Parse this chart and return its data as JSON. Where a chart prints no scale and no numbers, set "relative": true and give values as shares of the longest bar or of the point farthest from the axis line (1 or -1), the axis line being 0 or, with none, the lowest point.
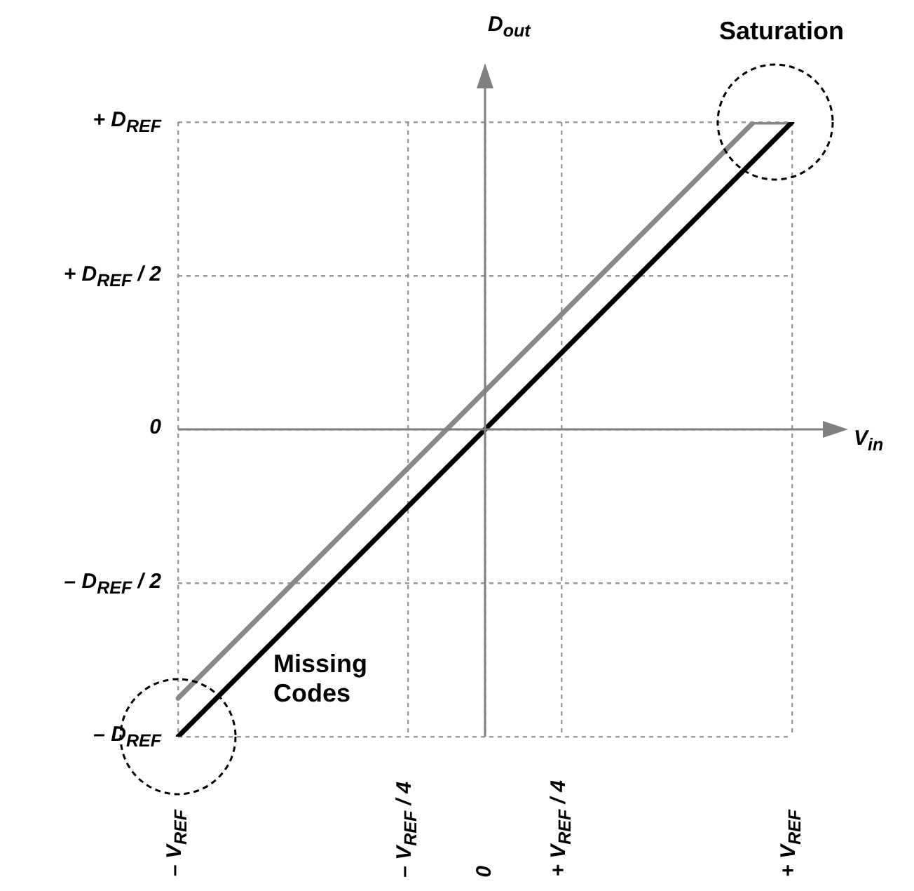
{
  "chart_data": {
    "type": "line",
    "relative": true,
    "xlabel": "V$_{in}$",
    "ylabel": "D$_{out}$",
    "grid": true,
    "legend": false,
    "marker": "none",
    "line_style": "solid",
    "categories": [
      "– V$_{REF}$",
      null,
      null,
      null,
      null,
      null,
      "– V$_{REF}$ / 4",
      null,
      "0",
      null,
      "+ V$_{REF}$ / 4",
      null,
      null,
      null,
      null,
      null,
      "+ V$_{REF}$"
    ],
    "annotations": [
      "Saturation",
      "Missing Codes",
      "+ D$_{REF}$",
      "+ D$_{REF}$ / 2",
      "0",
      "– D$_{REF}$ / 2",
      "– D$_{REF}$"
    ],
    "series": [
      {
        "color": "#888888",
        "values": [
          -0.875,
          -0.75,
          -0.625,
          -0.5,
          -0.375,
          -0.25,
          -0.125,
          0,
          0.125,
          0.25,
          0.375,
          0.5,
          0.625,
          0.75,
          0.875,
          1,
          1
        ]
      },
      {
        "color": "#000000",
        "values": [
          -1,
          -0.875,
          -0.75,
          -0.625,
          -0.5,
          -0.375,
          -0.25,
          -0.125,
          0,
          0.125,
          0.25,
          0.375,
          0.5,
          0.625,
          0.75,
          0.875,
          1
        ]
      }
    ]
  }
}
